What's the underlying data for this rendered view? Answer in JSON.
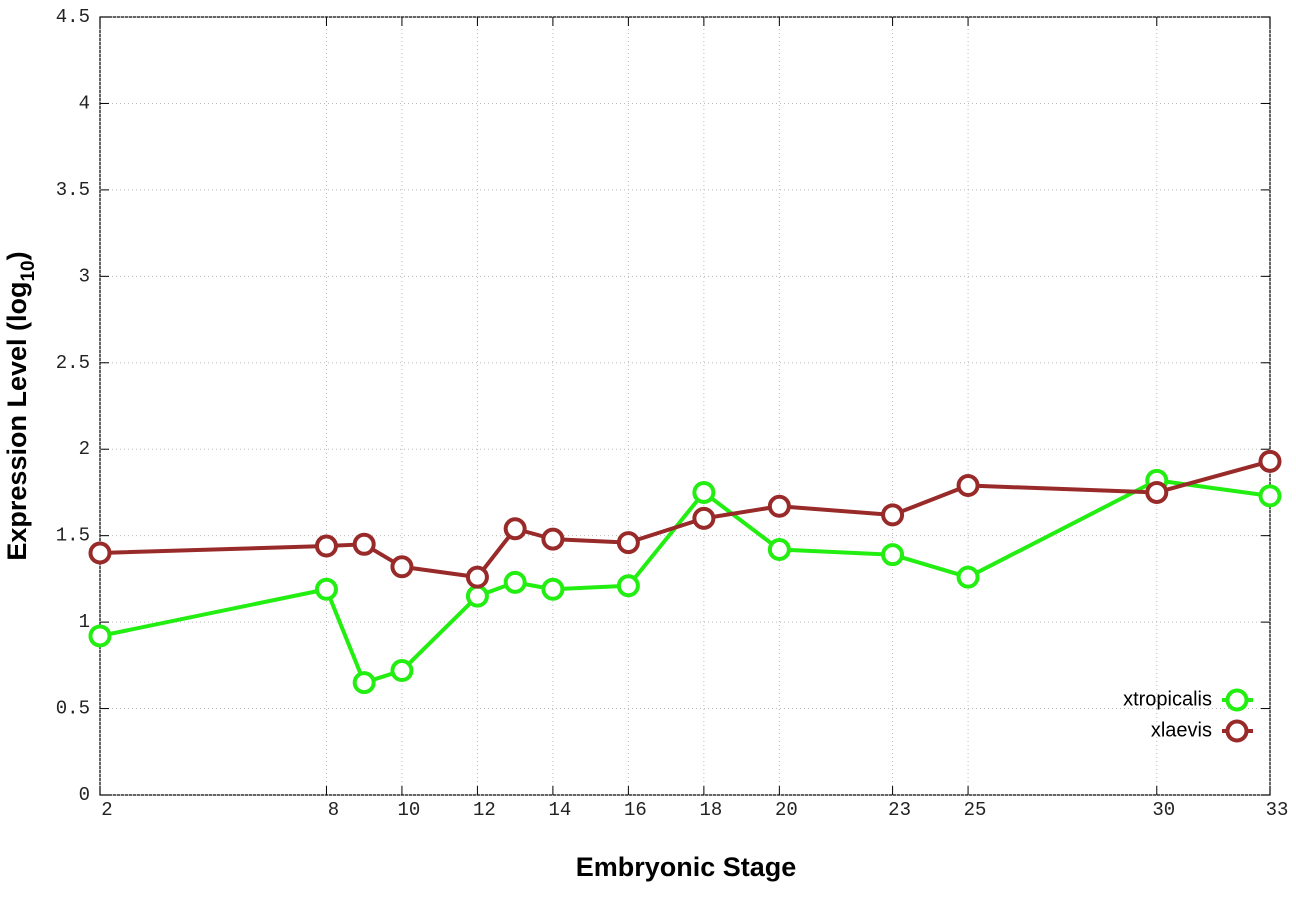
{
  "chart_data": {
    "type": "line",
    "xlabel": "Embryonic Stage",
    "ylabel": {
      "text": "Expression Level (log",
      "subscript": "10",
      "close": ")"
    },
    "x": [
      2,
      8,
      9,
      10,
      12,
      13,
      14,
      16,
      18,
      20,
      23,
      25,
      30,
      33
    ],
    "series": [
      {
        "name": "xtropicalis",
        "color": "#22ee11",
        "values": [
          0.92,
          1.19,
          0.65,
          0.72,
          1.15,
          1.23,
          1.19,
          1.21,
          1.75,
          1.42,
          1.39,
          1.26,
          1.82,
          1.73
        ]
      },
      {
        "name": "xlaevis",
        "color": "#992a2a",
        "values": [
          1.4,
          1.44,
          1.45,
          1.32,
          1.26,
          1.54,
          1.48,
          1.46,
          1.6,
          1.67,
          1.62,
          1.79,
          1.75,
          1.93
        ]
      }
    ],
    "xlim": [
      2,
      33
    ],
    "xticks": [
      2,
      8,
      10,
      12,
      14,
      16,
      18,
      20,
      23,
      25,
      30,
      33
    ],
    "ylim": [
      0,
      4.5
    ],
    "yticks": [
      0,
      0.5,
      1,
      1.5,
      2,
      2.5,
      3,
      3.5,
      4,
      4.5
    ],
    "grid": true,
    "legend": "lower right"
  }
}
